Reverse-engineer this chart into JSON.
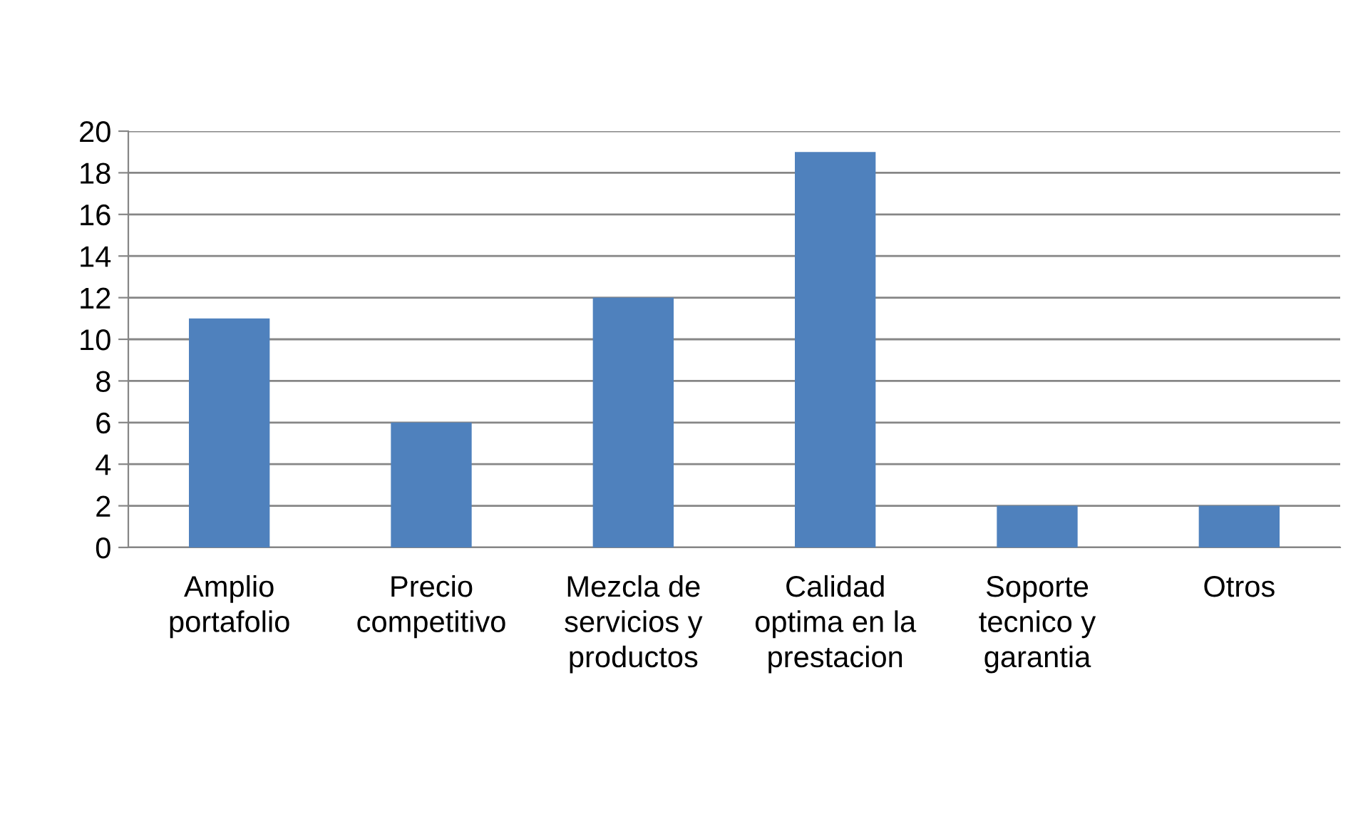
{
  "chart_data": {
    "type": "bar",
    "categories": [
      "Amplio portafolio",
      "Precio competitivo",
      "Mezcla de servicios y productos",
      "Calidad optima en la prestacion",
      "Soporte tecnico y garantia",
      "Otros"
    ],
    "values": [
      11,
      6,
      12,
      19,
      2,
      2
    ],
    "color": "#4f81bd",
    "ylim": [
      0,
      20
    ],
    "yticks": [
      0,
      2,
      4,
      6,
      8,
      10,
      12,
      14,
      16,
      18,
      20
    ],
    "grid": "y",
    "legend": false
  }
}
